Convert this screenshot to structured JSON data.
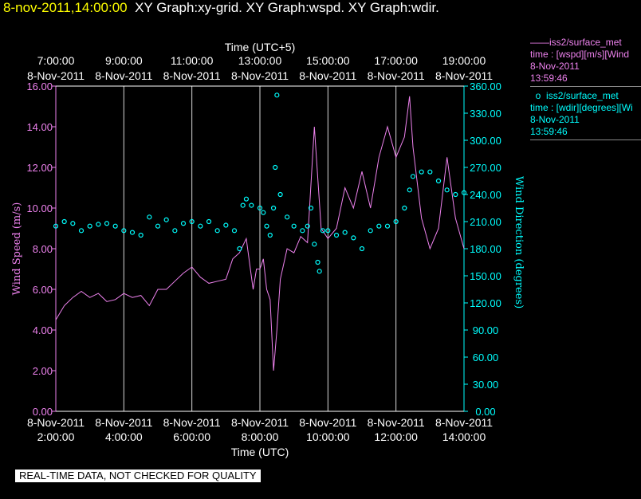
{
  "header": {
    "timestamp": "8-nov-2011,14:00:00",
    "titles": "XY Graph:xy-grid.  XY Graph:wspd.  XY Graph:wdir."
  },
  "footer": {
    "notice": "REAL-TIME DATA, NOT CHECKED FOR QUALITY"
  },
  "legend": [
    {
      "marker": "——",
      "name": "iss2/surface_met",
      "desc": "time : [wspd][m/s][Wind",
      "date": "8-Nov-2011",
      "time": "13:59:46",
      "color": "#ee82ee"
    },
    {
      "marker": "o",
      "name": "iss2/surface_met",
      "desc": "time : [wdir][degrees][Wi",
      "date": "8-Nov-2011",
      "time": "13:59:46",
      "color": "#00ffff"
    }
  ],
  "chart_data": {
    "type": "line",
    "title": "",
    "xlabel": "Time (UTC)",
    "x2label": "Time (UTC+5)",
    "ylabel": "Wind Speed (m/s)",
    "y2label": "Wind Direction (degrees)",
    "xlim": [
      "2011-11-08 02:00",
      "2011-11-08 14:00"
    ],
    "ylim": [
      0,
      16
    ],
    "y2lim": [
      0,
      360
    ],
    "grid": "vertical",
    "x_ticks_bottom": [
      {
        "date": "8-Nov-2011",
        "time": "2:00:00"
      },
      {
        "date": "8-Nov-2011",
        "time": "4:00:00"
      },
      {
        "date": "8-Nov-2011",
        "time": "6:00:00"
      },
      {
        "date": "8-Nov-2011",
        "time": "8:00:00"
      },
      {
        "date": "8-Nov-2011",
        "time": "10:00:00"
      },
      {
        "date": "8-Nov-2011",
        "time": "12:00:00"
      },
      {
        "date": "8-Nov-2011",
        "time": "14:00:00"
      }
    ],
    "x_ticks_top": [
      {
        "time": "7:00:00",
        "date": "8-Nov-2011"
      },
      {
        "time": "9:00:00",
        "date": "8-Nov-2011"
      },
      {
        "time": "11:00:00",
        "date": "8-Nov-2011"
      },
      {
        "time": "13:00:00",
        "date": "8-Nov-2011"
      },
      {
        "time": "15:00:00",
        "date": "8-Nov-2011"
      },
      {
        "time": "17:00:00",
        "date": "8-Nov-2011"
      },
      {
        "time": "19:00:00",
        "date": "8-Nov-2011"
      }
    ],
    "y_ticks": [
      "0.00",
      "2.00",
      "4.00",
      "6.00",
      "8.00",
      "10.00",
      "12.00",
      "14.00",
      "16.00"
    ],
    "y2_ticks": [
      "0.00",
      "30.00",
      "60.00",
      "90.00",
      "120.00",
      "150.00",
      "180.00",
      "210.00",
      "240.00",
      "270.00",
      "300.00",
      "330.00",
      "360.00"
    ],
    "series": [
      {
        "name": "iss2/surface_met [wspd]",
        "axis": "left",
        "style": "line",
        "color": "#ee82ee",
        "x_hours": [
          2.0,
          2.25,
          2.5,
          2.75,
          3.0,
          3.25,
          3.5,
          3.75,
          4.0,
          4.25,
          4.5,
          4.75,
          5.0,
          5.25,
          5.5,
          5.75,
          6.0,
          6.25,
          6.5,
          6.75,
          7.0,
          7.2,
          7.4,
          7.6,
          7.8,
          7.9,
          8.0,
          8.1,
          8.2,
          8.3,
          8.4,
          8.5,
          8.6,
          8.8,
          9.0,
          9.2,
          9.4,
          9.6,
          9.8,
          10.0,
          10.25,
          10.5,
          10.75,
          11.0,
          11.25,
          11.5,
          11.75,
          12.0,
          12.25,
          12.4,
          12.5,
          12.75,
          13.0,
          13.25,
          13.5,
          13.75,
          14.0
        ],
        "values": [
          4.5,
          5.2,
          5.6,
          5.9,
          5.6,
          5.8,
          5.4,
          5.5,
          5.8,
          5.6,
          5.7,
          5.2,
          6.0,
          6.0,
          6.4,
          6.8,
          7.1,
          6.6,
          6.3,
          6.4,
          6.5,
          7.5,
          7.8,
          8.5,
          6.0,
          7.0,
          7.0,
          7.5,
          6.0,
          5.5,
          2.0,
          4.0,
          6.5,
          8.0,
          7.8,
          8.6,
          8.3,
          14.0,
          9.0,
          8.5,
          9.0,
          11.0,
          10.0,
          11.8,
          10.0,
          12.5,
          14.0,
          12.5,
          13.5,
          15.5,
          13.0,
          9.5,
          8.0,
          9.0,
          12.5,
          9.5,
          8.0
        ]
      },
      {
        "name": "iss2/surface_met [wdir]",
        "axis": "right",
        "style": "markers",
        "color": "#00ffff",
        "x_hours": [
          2.0,
          2.25,
          2.5,
          2.75,
          3.0,
          3.25,
          3.5,
          3.75,
          4.0,
          4.25,
          4.5,
          4.75,
          5.0,
          5.25,
          5.5,
          5.75,
          6.0,
          6.25,
          6.5,
          6.75,
          7.0,
          7.25,
          7.4,
          7.5,
          7.6,
          7.75,
          8.0,
          8.1,
          8.2,
          8.3,
          8.4,
          8.45,
          8.5,
          8.6,
          8.8,
          9.0,
          9.25,
          9.4,
          9.5,
          9.6,
          9.7,
          9.75,
          9.85,
          10.0,
          10.25,
          10.5,
          10.75,
          11.0,
          11.25,
          11.5,
          11.75,
          12.0,
          12.25,
          12.4,
          12.5,
          12.75,
          13.0,
          13.25,
          13.5,
          13.75,
          14.0
        ],
        "values": [
          205,
          210,
          208,
          200,
          205,
          207,
          208,
          205,
          200,
          198,
          195,
          215,
          205,
          212,
          200,
          208,
          210,
          205,
          210,
          200,
          206,
          200,
          180,
          228,
          235,
          228,
          225,
          220,
          205,
          195,
          225,
          270,
          350,
          240,
          215,
          205,
          200,
          205,
          225,
          185,
          165,
          155,
          200,
          200,
          195,
          198,
          192,
          180,
          200,
          205,
          205,
          210,
          225,
          245,
          260,
          265,
          265,
          255,
          245,
          240,
          242
        ]
      }
    ]
  }
}
